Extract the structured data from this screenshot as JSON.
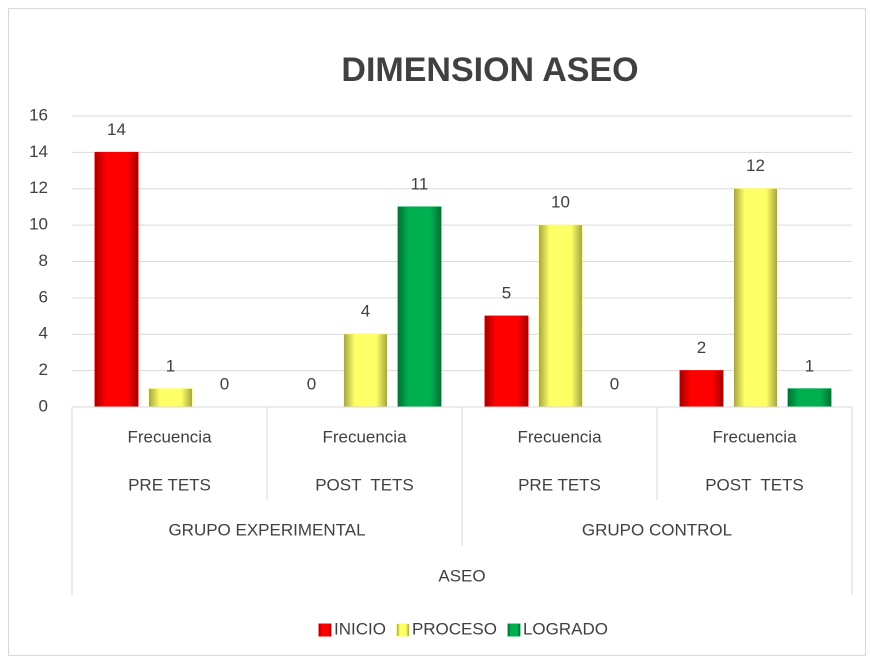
{
  "chart_data": {
    "type": "bar",
    "title": "DIMENSION ASEO",
    "categories": [
      "Frecuencia",
      "Frecuencia",
      "Frecuencia",
      "Frecuencia"
    ],
    "subgroups": [
      "PRE TETS",
      "POST  TETS",
      "PRE TETS",
      "POST  TETS"
    ],
    "groups": [
      "GRUPO EXPERIMENTAL",
      "GRUPO CONTROL"
    ],
    "supergroup": "ASEO",
    "series": [
      {
        "name": "INICIO",
        "color": "#ff0000",
        "values": [
          14,
          0,
          5,
          2
        ]
      },
      {
        "name": "PROCESO",
        "color": "#ffff66",
        "values": [
          1,
          4,
          10,
          12
        ]
      },
      {
        "name": "LOGRADO",
        "color": "#00b050",
        "values": [
          0,
          11,
          0,
          1
        ]
      }
    ],
    "ylim": [
      0,
      16
    ],
    "yticks": [
      0,
      2,
      4,
      6,
      8,
      10,
      12,
      14,
      16
    ],
    "grid": true,
    "legend": "bottom"
  }
}
